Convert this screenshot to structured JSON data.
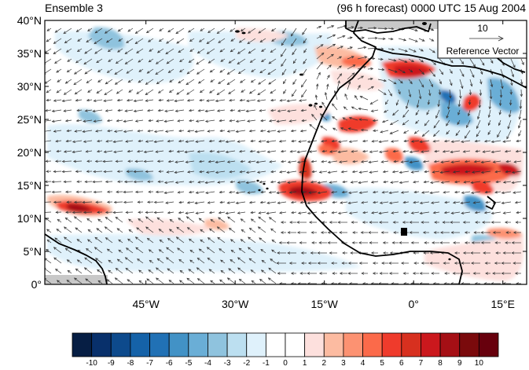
{
  "header": {
    "left_title": "Ensemble 3",
    "right_title": "(96 h forecast) 0000 UTC 15 Aug 2004"
  },
  "map": {
    "lat_labels": [
      "40°N",
      "35°N",
      "30°N",
      "25°N",
      "20°N",
      "15°N",
      "10°N",
      "5°N",
      "0°"
    ],
    "lat_values": [
      40,
      35,
      30,
      25,
      20,
      15,
      10,
      5,
      0
    ],
    "lon_labels": [
      "45°W",
      "30°W",
      "15°W",
      "0°",
      "15°E"
    ],
    "lon_values": [
      -45,
      -30,
      -15,
      0,
      15
    ],
    "lon_range": [
      -62,
      19
    ],
    "lat_range": [
      0,
      40
    ],
    "reference_vector": {
      "magnitude": "10",
      "label": "Reference Vector"
    }
  },
  "colorbar": {
    "labels": [
      "-10",
      "-9",
      "-8",
      "-7",
      "-6",
      "-5",
      "-4",
      "-3",
      "-2",
      "-1",
      "0",
      "1",
      "2",
      "3",
      "4",
      "5",
      "6",
      "7",
      "8",
      "9",
      "10"
    ],
    "colors": [
      "#061e44",
      "#08306b",
      "#0d4a8c",
      "#1562a8",
      "#2171b5",
      "#4292c6",
      "#6aaed6",
      "#8fc3de",
      "#bcdff0",
      "#dff1fb",
      "#ffffff",
      "#ffffff",
      "#fde0dd",
      "#fcbba1",
      "#fc9272",
      "#fb6a4a",
      "#ef3b2c",
      "#d7301f",
      "#cb181d",
      "#a50f15",
      "#7a0a0c",
      "#67000d"
    ]
  }
}
